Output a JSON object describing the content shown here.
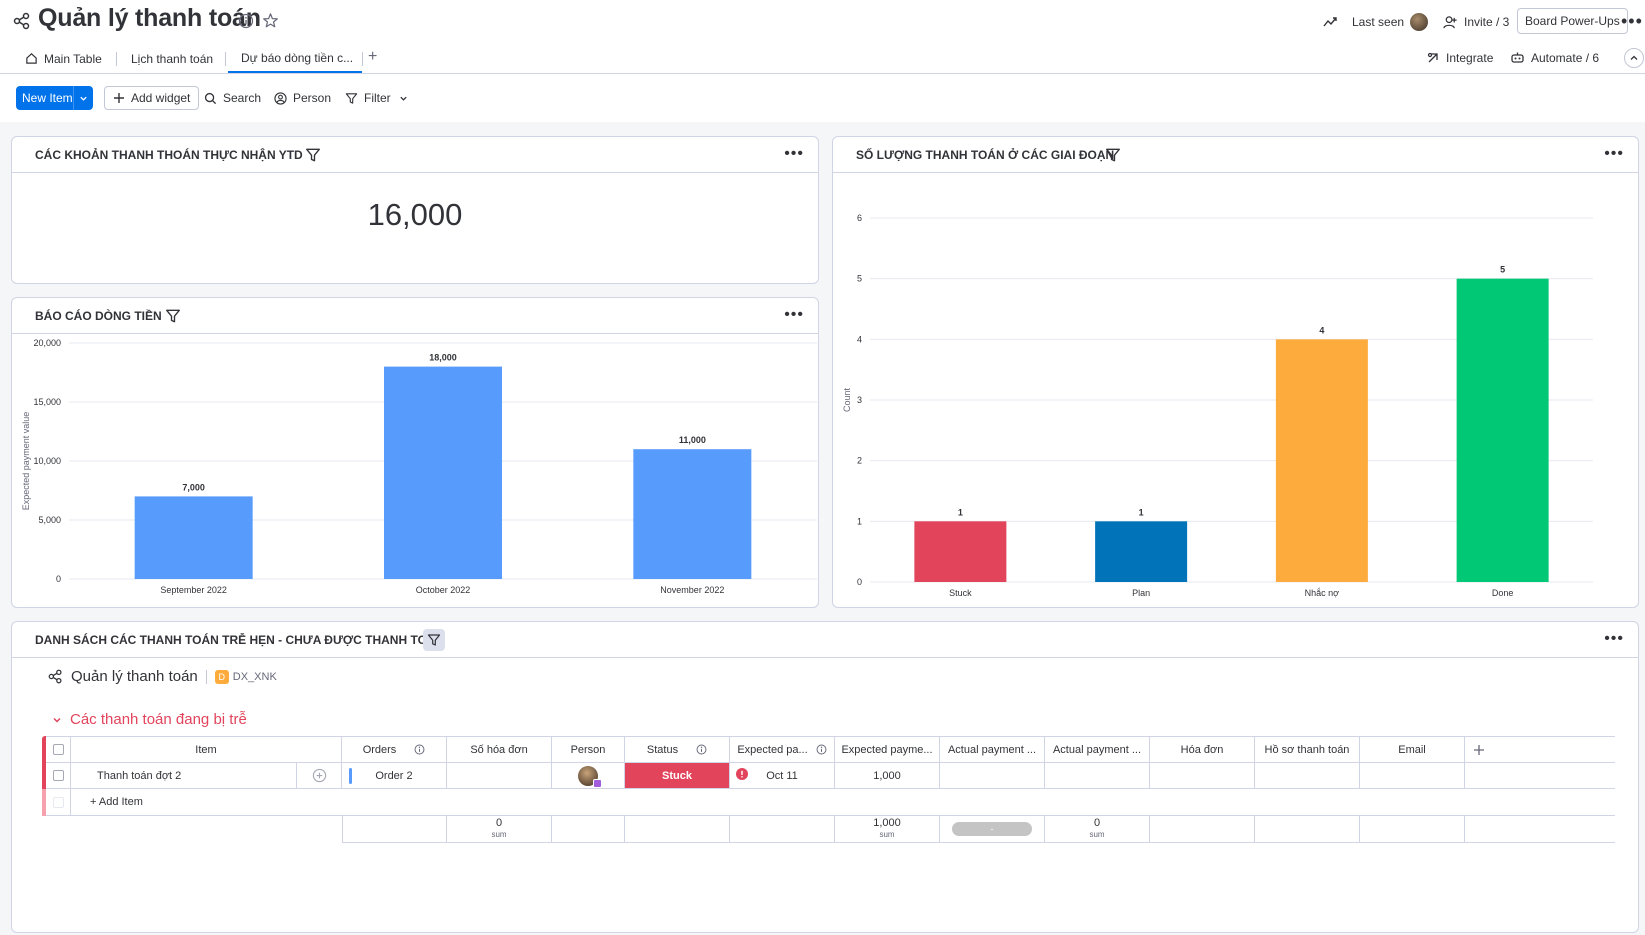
{
  "board": {
    "title": "Quản lý thanh toán",
    "last_seen_label": "Last seen",
    "invite_label": "Invite / 3",
    "power_ups_label": "Board Power-Ups"
  },
  "tabs": [
    {
      "label": "Main Table"
    },
    {
      "label": "Lịch thanh toán"
    },
    {
      "label": "Dự báo dòng tiền c..."
    }
  ],
  "tabs_right": {
    "integrate": "Integrate",
    "automate": "Automate / 6"
  },
  "toolbar": {
    "new_item": "New Item",
    "add_widget": "Add widget",
    "search": "Search",
    "person": "Person",
    "filter": "Filter"
  },
  "widgets": {
    "ytd": {
      "title": "CÁC KHOẢN THANH THOÁN THỰC NHẬN YTD",
      "value": "16,000"
    },
    "cashflow": {
      "title": "BÁO CÁO DÒNG TIỀN"
    },
    "stages": {
      "title": "SỐ LƯỢNG THANH TOÁN Ở CÁC GIAI ĐOẠN"
    },
    "overdue": {
      "title": "DANH SÁCH CÁC THANH TOÁN TRỄ HẸN - CHƯA ĐƯỢC THANH TOÁN"
    }
  },
  "chart_data": [
    {
      "type": "bar",
      "title": "BÁO CÁO DÒNG TIỀN",
      "categories": [
        "September 2022",
        "October 2022",
        "November 2022"
      ],
      "values": [
        7000,
        18000,
        11000
      ],
      "value_labels": [
        "7,000",
        "18,000",
        "11,000"
      ],
      "ylabel": "Expected payment value",
      "yticks": [
        "0",
        "5,000",
        "10,000",
        "15,000",
        "20,000"
      ],
      "ylim": [
        0,
        20000
      ],
      "colors": [
        "#579bfc",
        "#579bfc",
        "#579bfc"
      ],
      "grid": true
    },
    {
      "type": "bar",
      "title": "SỐ LƯỢNG THANH TOÁN Ở CÁC GIAI ĐOẠN",
      "categories": [
        "Stuck",
        "Plan",
        "Nhắc nợ",
        "Done"
      ],
      "values": [
        1,
        1,
        4,
        5
      ],
      "value_labels": [
        "1",
        "1",
        "4",
        "5"
      ],
      "ylabel": "Count",
      "yticks": [
        "0",
        "1",
        "2",
        "3",
        "4",
        "5",
        "6"
      ],
      "ylim": [
        0,
        6
      ],
      "colors": [
        "#e2445c",
        "#0073b9",
        "#fdab3d",
        "#00c875"
      ],
      "grid": true
    }
  ],
  "table": {
    "board_title": "Quản lý thanh toán",
    "workspace_badge": "D",
    "workspace_name": "DX_XNK",
    "group_title": "Các thanh toán đang bị trễ",
    "columns": [
      "Item",
      "Orders",
      "Số hóa đơn",
      "Person",
      "Status",
      "Expected pa...",
      "Expected payme...",
      "Actual payment ...",
      "Actual payment ...",
      "Hóa đơn",
      "Hồ sơ thanh toán",
      "Email"
    ],
    "row": {
      "item": "Thanh toán đợt 2",
      "orders": "Order 2",
      "status": "Stuck",
      "expected_date": "Oct 11",
      "expected_value": "1,000"
    },
    "add_item": "+ Add Item",
    "summary": {
      "so_hoa_don": "0",
      "expected_value": "1,000",
      "actual_date": "-",
      "actual_value": "0",
      "sum_label": "sum"
    },
    "colors": {
      "group": "#e2445c",
      "stuck": "#e2445c"
    }
  }
}
